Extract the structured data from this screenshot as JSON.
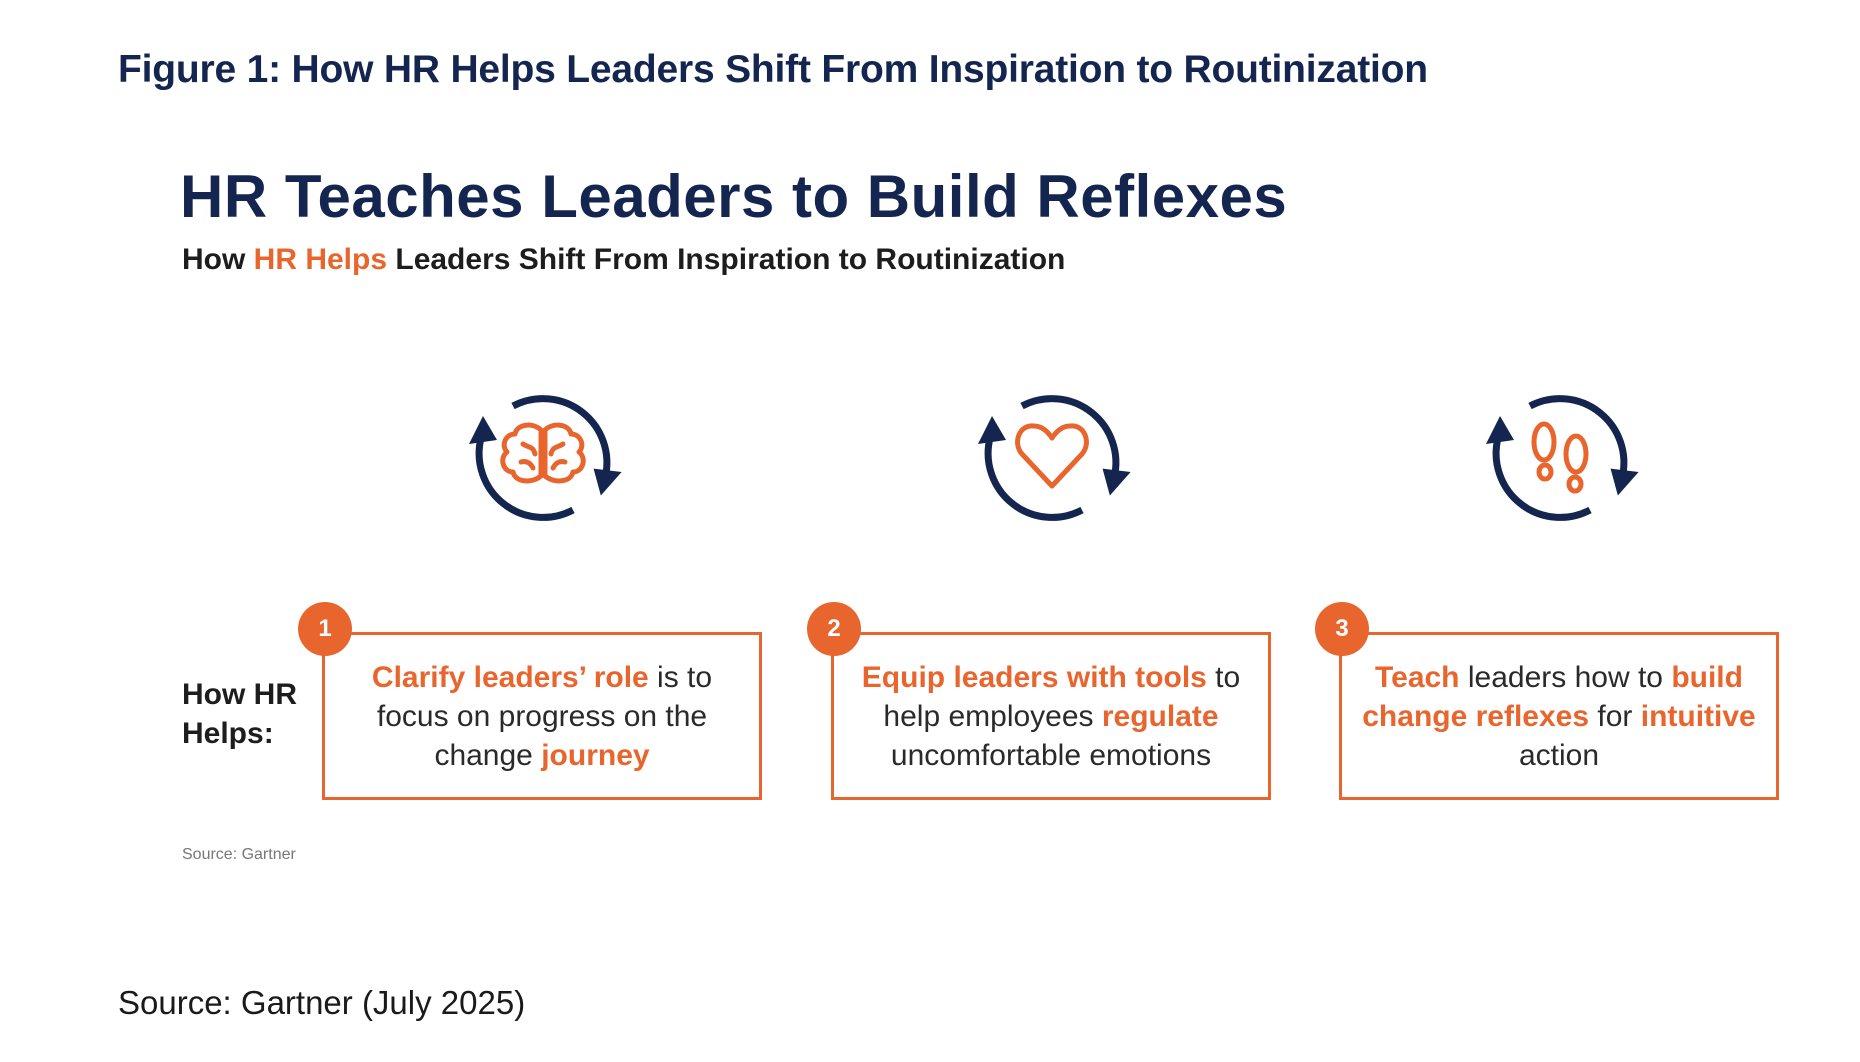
{
  "figure_title": "Figure 1: How HR Helps Leaders Shift From Inspiration to Routinization",
  "graphic": {
    "title": "HR Teaches Leaders to Build Reflexes",
    "subtitle": {
      "part1": "How ",
      "part2": "HR Helps",
      "part3": " Leaders Shift From Inspiration to Routinization"
    },
    "row_label": "How HR Helps:",
    "steps": [
      {
        "number": "1",
        "icon": "brain-icon",
        "segments": [
          {
            "text": "Clarify leaders’ role",
            "highlight": true
          },
          {
            "text": " is to focus on progress on the change ",
            "highlight": false
          },
          {
            "text": "journey",
            "highlight": true
          }
        ]
      },
      {
        "number": "2",
        "icon": "heart-icon",
        "segments": [
          {
            "text": "Equip leaders with tools",
            "highlight": true
          },
          {
            "text": " to help employees ",
            "highlight": false
          },
          {
            "text": "regulate",
            "highlight": true
          },
          {
            "text": " uncomfortable emotions",
            "highlight": false
          }
        ]
      },
      {
        "number": "3",
        "icon": "footprints-icon",
        "segments": [
          {
            "text": "Teach",
            "highlight": true
          },
          {
            "text": " leaders how to ",
            "highlight": false
          },
          {
            "text": "build change reflexes",
            "highlight": true
          },
          {
            "text": " for ",
            "highlight": false
          },
          {
            "text": "intuitive",
            "highlight": true
          },
          {
            "text": " action",
            "highlight": false
          }
        ]
      }
    ],
    "source": "Source: Gartner"
  },
  "footer_source": "Source: Gartner (July 2025)",
  "colors": {
    "navy": "#14264f",
    "orange": "#e8662e"
  }
}
